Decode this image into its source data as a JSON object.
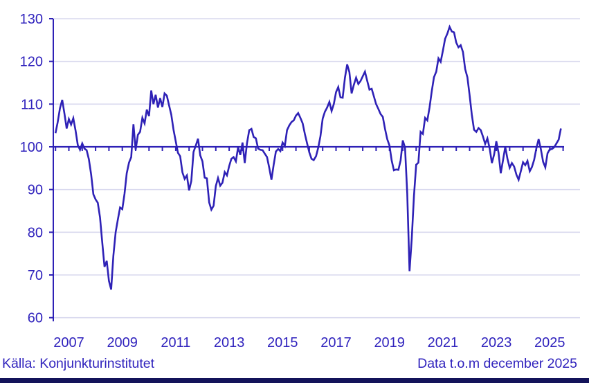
{
  "footer": {
    "source": "Källa: Konjunkturinstitutet",
    "data_through": "Data t.o.m december 2025"
  },
  "colors": {
    "line": "#2e21b6",
    "grid": "#d8d8ee",
    "text": "#3023bd",
    "bottom_bar": "#13135a",
    "background": "#ffffff"
  },
  "chart_data": {
    "type": "line",
    "title": "",
    "xlabel": "",
    "ylabel": "",
    "frequency": "monthly",
    "x_start": {
      "year": 2007,
      "month": 1
    },
    "x_end": {
      "year": 2025,
      "month": 12
    },
    "ylim": [
      60,
      130
    ],
    "yticks": [
      60,
      70,
      80,
      90,
      100,
      110,
      120,
      130
    ],
    "baseline": 100,
    "grid": "horizontal",
    "legend": "none",
    "xtick_labels": [
      "2007",
      "2009",
      "2011",
      "2013",
      "2015",
      "2017",
      "2019",
      "2021",
      "2023",
      "2025"
    ],
    "values": [
      103.2,
      105.8,
      109.0,
      111.0,
      107.8,
      104.3,
      106.5,
      105.2,
      106.7,
      103.8,
      100.4,
      99.3,
      100.8,
      99.6,
      99.2,
      97.1,
      93.5,
      88.9,
      87.7,
      86.9,
      83.5,
      77.5,
      71.9,
      73.3,
      68.6,
      66.6,
      74.5,
      80.0,
      83.0,
      85.8,
      85.4,
      89.0,
      93.8,
      96.3,
      97.6,
      105.3,
      99.3,
      102.8,
      103.5,
      106.8,
      105.5,
      108.7,
      107.2,
      113.2,
      110.0,
      112.2,
      109.2,
      111.4,
      109.3,
      112.5,
      112.0,
      109.7,
      107.5,
      104.0,
      101.3,
      98.6,
      97.8,
      94.0,
      92.5,
      93.3,
      89.8,
      92.0,
      98.8,
      100.3,
      101.9,
      98.0,
      96.6,
      92.8,
      92.6,
      87.0,
      85.3,
      86.2,
      90.8,
      92.7,
      90.9,
      91.6,
      94.1,
      93.3,
      95.5,
      97.2,
      97.6,
      96.6,
      99.9,
      98.1,
      101.0,
      96.2,
      100.8,
      103.9,
      104.2,
      102.3,
      102.0,
      99.6,
      99.3,
      99.2,
      98.4,
      97.6,
      95.1,
      92.3,
      95.8,
      98.9,
      99.5,
      99.0,
      101.0,
      100.2,
      103.9,
      105.0,
      105.8,
      106.2,
      107.3,
      107.9,
      106.8,
      105.5,
      103.0,
      100.8,
      98.7,
      97.2,
      96.9,
      97.8,
      99.8,
      102.5,
      106.6,
      108.2,
      109.2,
      110.5,
      108.4,
      110.0,
      112.8,
      114.0,
      111.6,
      111.5,
      116.2,
      119.3,
      117.5,
      112.5,
      114.5,
      116.2,
      114.7,
      115.4,
      116.5,
      117.6,
      115.5,
      113.4,
      113.6,
      111.8,
      110.0,
      108.9,
      107.7,
      107.0,
      104.2,
      101.8,
      100.3,
      96.8,
      94.5,
      94.7,
      94.6,
      96.8,
      101.5,
      99.8,
      89.0,
      70.9,
      78.5,
      88.5,
      95.8,
      96.3,
      103.5,
      103.0,
      106.8,
      106.2,
      109.2,
      113.0,
      116.3,
      117.6,
      120.7,
      119.9,
      122.5,
      125.3,
      126.5,
      128.1,
      127.0,
      126.8,
      124.4,
      123.3,
      123.8,
      122.2,
      118.2,
      116.3,
      112.1,
      107.5,
      104.0,
      103.5,
      104.4,
      103.9,
      102.4,
      100.7,
      102.0,
      99.6,
      96.2,
      98.2,
      101.3,
      98.6,
      93.8,
      96.9,
      100.0,
      97.2,
      95.1,
      96.2,
      95.4,
      93.5,
      92.3,
      94.3,
      96.4,
      95.7,
      96.7,
      94.3,
      95.3,
      97.0,
      99.7,
      101.8,
      99.5,
      96.5,
      95.2,
      98.5,
      99.4,
      99.5,
      99.9,
      100.8,
      101.7,
      104.3
    ]
  }
}
